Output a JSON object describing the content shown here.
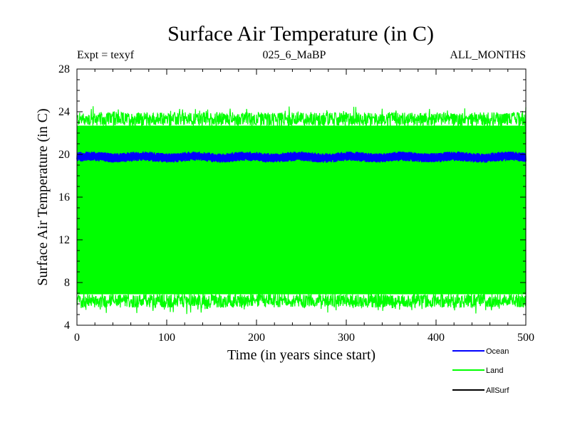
{
  "chart_data": {
    "type": "line",
    "title": "Surface Air Temperature (in C)",
    "subtitle_left": "Expt = texyf",
    "subtitle_center": "025_6_MaBP",
    "subtitle_right": "ALL_MONTHS",
    "xlabel": "Time (in years since start)",
    "ylabel": "Surface Air Temperature (in C)",
    "xlim": [
      0,
      500
    ],
    "ylim": [
      4,
      28
    ],
    "xticks": [
      0,
      100,
      200,
      300,
      400,
      500
    ],
    "yticks": [
      4,
      8,
      12,
      16,
      20,
      24,
      28
    ],
    "legend_position": "bottom-right",
    "series": [
      {
        "name": "Land",
        "color": "#00ff00",
        "style": "seasonal-envelope",
        "mean": 14.8,
        "annual_max_approx": 23.3,
        "annual_min_approx": 6.3,
        "values_note": "monthly values oscillating between ~6 and ~24 C"
      },
      {
        "name": "Ocean",
        "color": "#0000ff",
        "style": "noisy-band",
        "mean": 19.75,
        "band_min": 19.3,
        "band_max": 20.2
      },
      {
        "name": "AllSurf",
        "color": "#000000",
        "style": "not-visible"
      }
    ],
    "legend_order": [
      "Ocean",
      "Land",
      "AllSurf"
    ]
  }
}
